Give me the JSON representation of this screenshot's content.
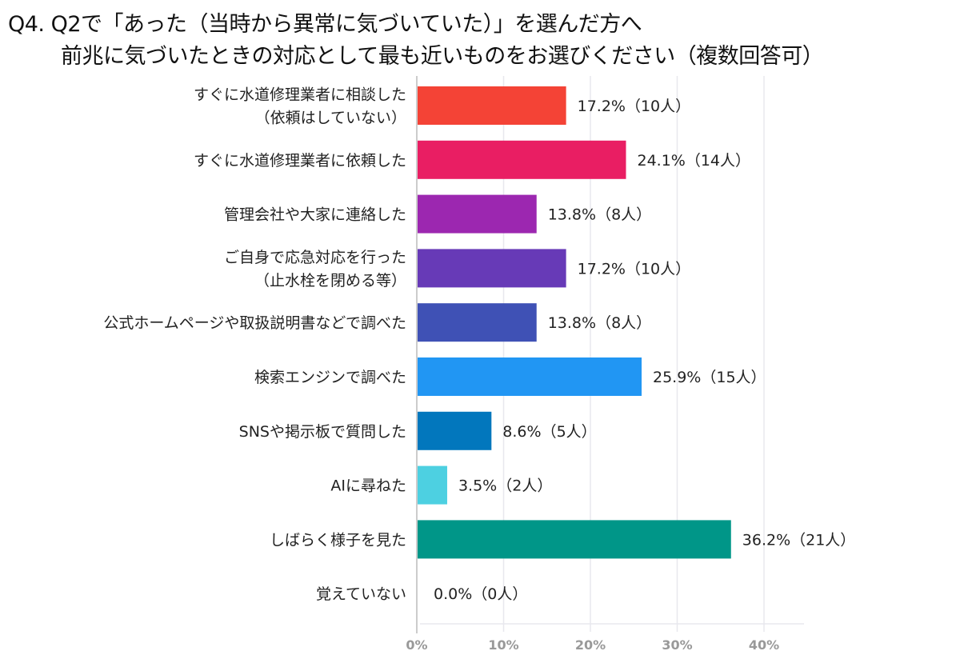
{
  "chart_data": {
    "type": "bar",
    "orientation": "horizontal",
    "title": [
      "Q4. Q2で「あった（当時から異常に気づいていた）」を選んだ方へ",
      "前兆に気づいたときの対応として最も近いものをお選びください（複数回答可）"
    ],
    "categories": [
      [
        "すぐに水道修理業者に相談した",
        "（依頼はしていない）"
      ],
      [
        "すぐに水道修理業者に依頼した"
      ],
      [
        "管理会社や大家に連絡した"
      ],
      [
        "ご自身で応急対応を行った",
        "（止水栓を閉める等）"
      ],
      [
        "公式ホームページや取扱説明書などで調べた"
      ],
      [
        "検索エンジンで調べた"
      ],
      [
        "SNSや掲示板で質問した"
      ],
      [
        "AIに尋ねた"
      ],
      [
        "しばらく様子を見た"
      ],
      [
        "覚えていない"
      ]
    ],
    "values": [
      17.2,
      24.1,
      13.8,
      17.2,
      13.8,
      25.9,
      8.6,
      3.5,
      36.2,
      0.0
    ],
    "data_labels": [
      "17.2%（10人）",
      "24.1%（14人）",
      "13.8%（8人）",
      "17.2%（10人）",
      "13.8%（8人）",
      "25.9%（15人）",
      "8.6%（5人）",
      "3.5%（2人）",
      "36.2%（21人）",
      "0.0%（0人）"
    ],
    "colors": [
      "#f44336",
      "#e91e63",
      "#9c27b0",
      "#673ab7",
      "#3f51b5",
      "#2196f3",
      "#0277bd",
      "#4dd0e1",
      "#009688",
      "#9e9e9e"
    ],
    "xlim": [
      0,
      40
    ],
    "x_ticks": [
      "0%",
      "10%",
      "20%",
      "30%",
      "40%"
    ],
    "xlabel": "",
    "ylabel": "",
    "grid": true,
    "legend": "none"
  }
}
